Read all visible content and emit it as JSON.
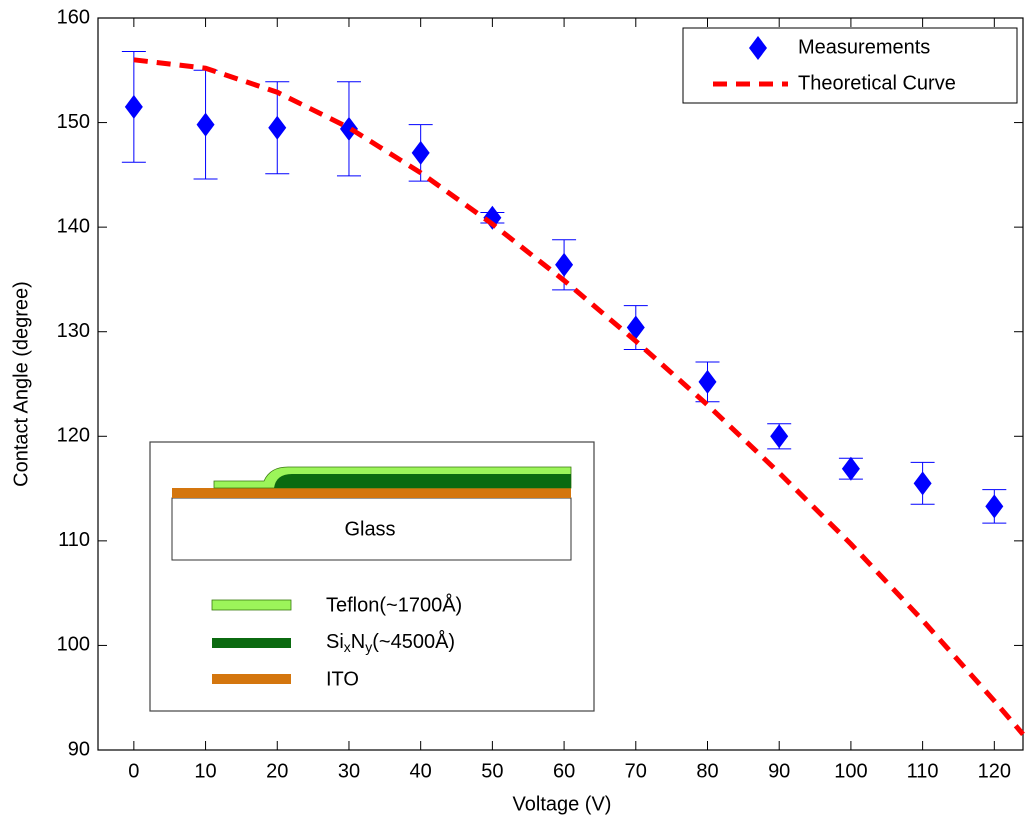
{
  "chart_data": {
    "type": "scatter",
    "xlabel": "Voltage (V)",
    "ylabel": "Contact Angle (degree)",
    "xlim": [
      -5,
      124
    ],
    "ylim": [
      90,
      160
    ],
    "xticks": [
      0,
      10,
      20,
      30,
      40,
      50,
      60,
      70,
      80,
      90,
      100,
      110,
      120
    ],
    "yticks": [
      90,
      100,
      110,
      120,
      130,
      140,
      150,
      160
    ],
    "grid": false,
    "legend": "upper right",
    "series": [
      {
        "name": "Measurements",
        "style": "errorbar",
        "color": "#0000ff",
        "x": [
          0,
          10,
          20,
          30,
          40,
          50,
          60,
          70,
          80,
          90,
          100,
          110,
          120
        ],
        "values": [
          151.5,
          149.8,
          149.5,
          149.4,
          147.1,
          140.9,
          136.4,
          130.4,
          125.2,
          120.0,
          116.9,
          115.5,
          113.3
        ],
        "errors": [
          5.3,
          5.2,
          4.4,
          4.5,
          2.7,
          0.5,
          2.4,
          2.1,
          1.9,
          1.2,
          1.0,
          2.0,
          1.6
        ]
      },
      {
        "name": "Theoretical Curve",
        "style": "dashed-line",
        "color": "#ff0000",
        "x": [
          0,
          10,
          20,
          30,
          40,
          50,
          60,
          70,
          80,
          90,
          100,
          110,
          120,
          124
        ],
        "values": [
          156.0,
          155.2,
          152.9,
          149.5,
          145.2,
          140.3,
          134.9,
          129.1,
          123.0,
          116.5,
          109.7,
          102.4,
          94.7,
          91.5
        ]
      }
    ],
    "inset": {
      "substrate": "Glass",
      "teflon": "Teflon(~1700Å)",
      "sinx": [
        "Si",
        "x",
        "N",
        "y",
        "(~4500Å)"
      ],
      "ito": "ITO"
    }
  }
}
